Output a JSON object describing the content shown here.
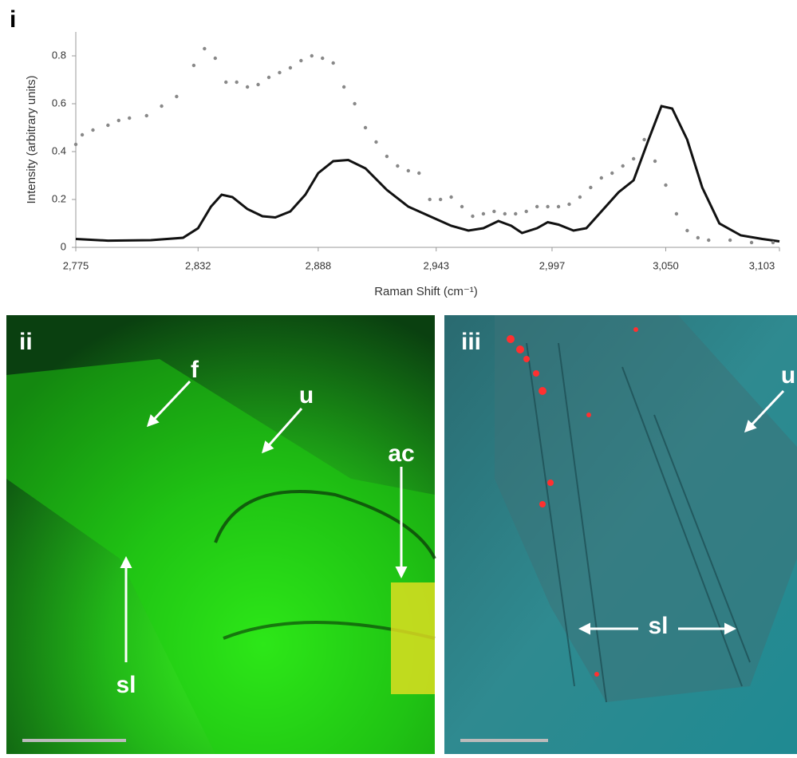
{
  "chart_data": {
    "type": "line",
    "panel_label": "i",
    "ylabel": "Intensity (arbitrary units)",
    "xlabel": "Raman Shift (cm⁻¹)",
    "xlim": [
      2775,
      3103
    ],
    "ylim": [
      0,
      0.9
    ],
    "xticks": [
      {
        "value": 2775,
        "label": "2,775"
      },
      {
        "value": 2832,
        "label": "2,832"
      },
      {
        "value": 2888,
        "label": "2,888"
      },
      {
        "value": 2943,
        "label": "2,943"
      },
      {
        "value": 2997,
        "label": "2,997"
      },
      {
        "value": 3050,
        "label": "3,050"
      },
      {
        "value": 3103,
        "label": "3,103"
      }
    ],
    "yticks": [
      0,
      0.2,
      0.4,
      0.6,
      0.8
    ],
    "series": [
      {
        "style": "line",
        "color": "#111111",
        "x": [
          2775,
          2790,
          2810,
          2825,
          2832,
          2838,
          2843,
          2848,
          2855,
          2862,
          2868,
          2875,
          2882,
          2888,
          2895,
          2902,
          2910,
          2920,
          2930,
          2940,
          2950,
          2958,
          2965,
          2972,
          2978,
          2983,
          2990,
          2995,
          3000,
          3007,
          3013,
          3020,
          3028,
          3035,
          3042,
          3048,
          3053,
          3060,
          3067,
          3075,
          3085,
          3095,
          3103
        ],
        "values": [
          0.035,
          0.028,
          0.03,
          0.04,
          0.08,
          0.17,
          0.22,
          0.21,
          0.16,
          0.13,
          0.125,
          0.15,
          0.22,
          0.31,
          0.36,
          0.365,
          0.33,
          0.24,
          0.17,
          0.13,
          0.09,
          0.07,
          0.08,
          0.11,
          0.09,
          0.06,
          0.08,
          0.105,
          0.095,
          0.07,
          0.08,
          0.15,
          0.23,
          0.28,
          0.45,
          0.59,
          0.58,
          0.45,
          0.25,
          0.1,
          0.05,
          0.035,
          0.025
        ]
      },
      {
        "style": "points",
        "color": "#888888",
        "x": [
          2775,
          2778,
          2783,
          2790,
          2795,
          2800,
          2808,
          2815,
          2822,
          2830,
          2835,
          2840,
          2845,
          2850,
          2855,
          2860,
          2865,
          2870,
          2875,
          2880,
          2885,
          2890,
          2895,
          2900,
          2905,
          2910,
          2915,
          2920,
          2925,
          2930,
          2935,
          2940,
          2945,
          2950,
          2955,
          2960,
          2965,
          2970,
          2975,
          2980,
          2985,
          2990,
          2995,
          3000,
          3005,
          3010,
          3015,
          3020,
          3025,
          3030,
          3035,
          3040,
          3045,
          3050,
          3055,
          3060,
          3065,
          3070,
          3080,
          3090,
          3100
        ],
        "values": [
          0.43,
          0.47,
          0.49,
          0.51,
          0.53,
          0.54,
          0.55,
          0.59,
          0.63,
          0.76,
          0.83,
          0.79,
          0.69,
          0.69,
          0.67,
          0.68,
          0.71,
          0.73,
          0.75,
          0.78,
          0.8,
          0.79,
          0.77,
          0.67,
          0.6,
          0.5,
          0.44,
          0.38,
          0.34,
          0.32,
          0.31,
          0.2,
          0.2,
          0.21,
          0.17,
          0.13,
          0.14,
          0.15,
          0.14,
          0.14,
          0.15,
          0.17,
          0.17,
          0.17,
          0.18,
          0.21,
          0.25,
          0.29,
          0.31,
          0.34,
          0.37,
          0.45,
          0.36,
          0.26,
          0.14,
          0.07,
          0.04,
          0.03,
          0.03,
          0.02,
          0.02
        ]
      }
    ]
  },
  "panels": [
    {
      "label": "ii",
      "annotations": [
        "f",
        "u",
        "ac",
        "sl"
      ]
    },
    {
      "label": "iii",
      "annotations": [
        "u",
        "sl"
      ]
    }
  ]
}
